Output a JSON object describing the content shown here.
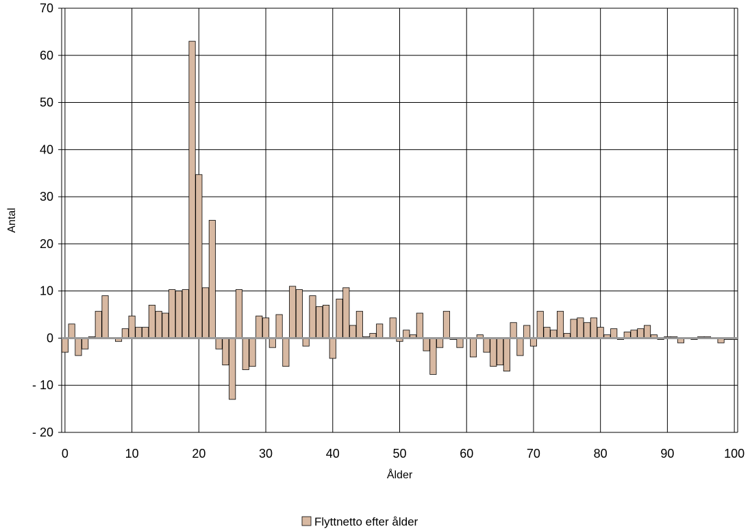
{
  "chart_data": {
    "type": "bar",
    "xlabel": "Ålder",
    "ylabel": "Antal",
    "legend": {
      "label": "Flyttnetto efter ålder",
      "placement": "bottom"
    },
    "grid": true,
    "ylim": [
      -20,
      70
    ],
    "yticks": [
      -20,
      -10,
      0,
      10,
      20,
      30,
      40,
      50,
      60,
      70
    ],
    "ytick_labels": [
      "- 20",
      "- 10",
      "0",
      "10",
      "20",
      "30",
      "40",
      "50",
      "60",
      "70"
    ],
    "xlim": [
      0,
      100
    ],
    "xticks": [
      0,
      10,
      20,
      30,
      40,
      50,
      60,
      70,
      80,
      90,
      100
    ],
    "xtick_labels": [
      "0",
      "10",
      "20",
      "30",
      "40",
      "50",
      "60",
      "70",
      "80",
      "90",
      "100"
    ],
    "colors": {
      "bar_fill": "#d8b9a2",
      "bar_stroke": "#000000",
      "grid": "#000000",
      "zero_line": "#999999"
    },
    "x": [
      0,
      1,
      2,
      3,
      4,
      5,
      6,
      7,
      8,
      9,
      10,
      11,
      12,
      13,
      14,
      15,
      16,
      17,
      18,
      19,
      20,
      21,
      22,
      23,
      24,
      25,
      26,
      27,
      28,
      29,
      30,
      31,
      32,
      33,
      34,
      35,
      36,
      37,
      38,
      39,
      40,
      41,
      42,
      43,
      44,
      45,
      46,
      47,
      48,
      49,
      50,
      51,
      52,
      53,
      54,
      55,
      56,
      57,
      58,
      59,
      60,
      61,
      62,
      63,
      64,
      65,
      66,
      67,
      68,
      69,
      70,
      71,
      72,
      73,
      74,
      75,
      76,
      77,
      78,
      79,
      80,
      81,
      82,
      83,
      84,
      85,
      86,
      87,
      88,
      89,
      90,
      91,
      92,
      93,
      94,
      95,
      96,
      97,
      98,
      99,
      100
    ],
    "values": [
      -3,
      3,
      -3.7,
      -2.3,
      0.3,
      5.7,
      9,
      0,
      -0.7,
      2,
      4.7,
      2.3,
      2.3,
      7,
      5.7,
      5.3,
      10.3,
      10,
      10.3,
      63,
      34.7,
      10.7,
      25,
      -2.3,
      -5.7,
      -13,
      10.3,
      -6.7,
      -6,
      4.7,
      4.3,
      -2,
      5,
      -6,
      11,
      10.3,
      -1.7,
      9,
      6.7,
      7,
      -4.3,
      8.3,
      10.7,
      2.7,
      5.7,
      0.3,
      1,
      3,
      0,
      4.3,
      -0.7,
      1.7,
      0.7,
      5.3,
      -2.7,
      -7.7,
      -2,
      5.7,
      -0.3,
      -2,
      0,
      -4,
      0.7,
      -3,
      -6,
      -5.7,
      -7,
      3.3,
      -3.7,
      2.7,
      -1.7,
      5.7,
      2.3,
      1.7,
      5.7,
      1,
      4,
      4.3,
      3.3,
      4.3,
      2.3,
      0.7,
      2,
      -0.3,
      1.3,
      1.7,
      2,
      2.7,
      0.7,
      -0.3,
      0.3,
      0.3,
      -1,
      0,
      -0.3,
      0.3,
      0.3,
      0,
      -1,
      -0.3,
      -0.3
    ]
  }
}
